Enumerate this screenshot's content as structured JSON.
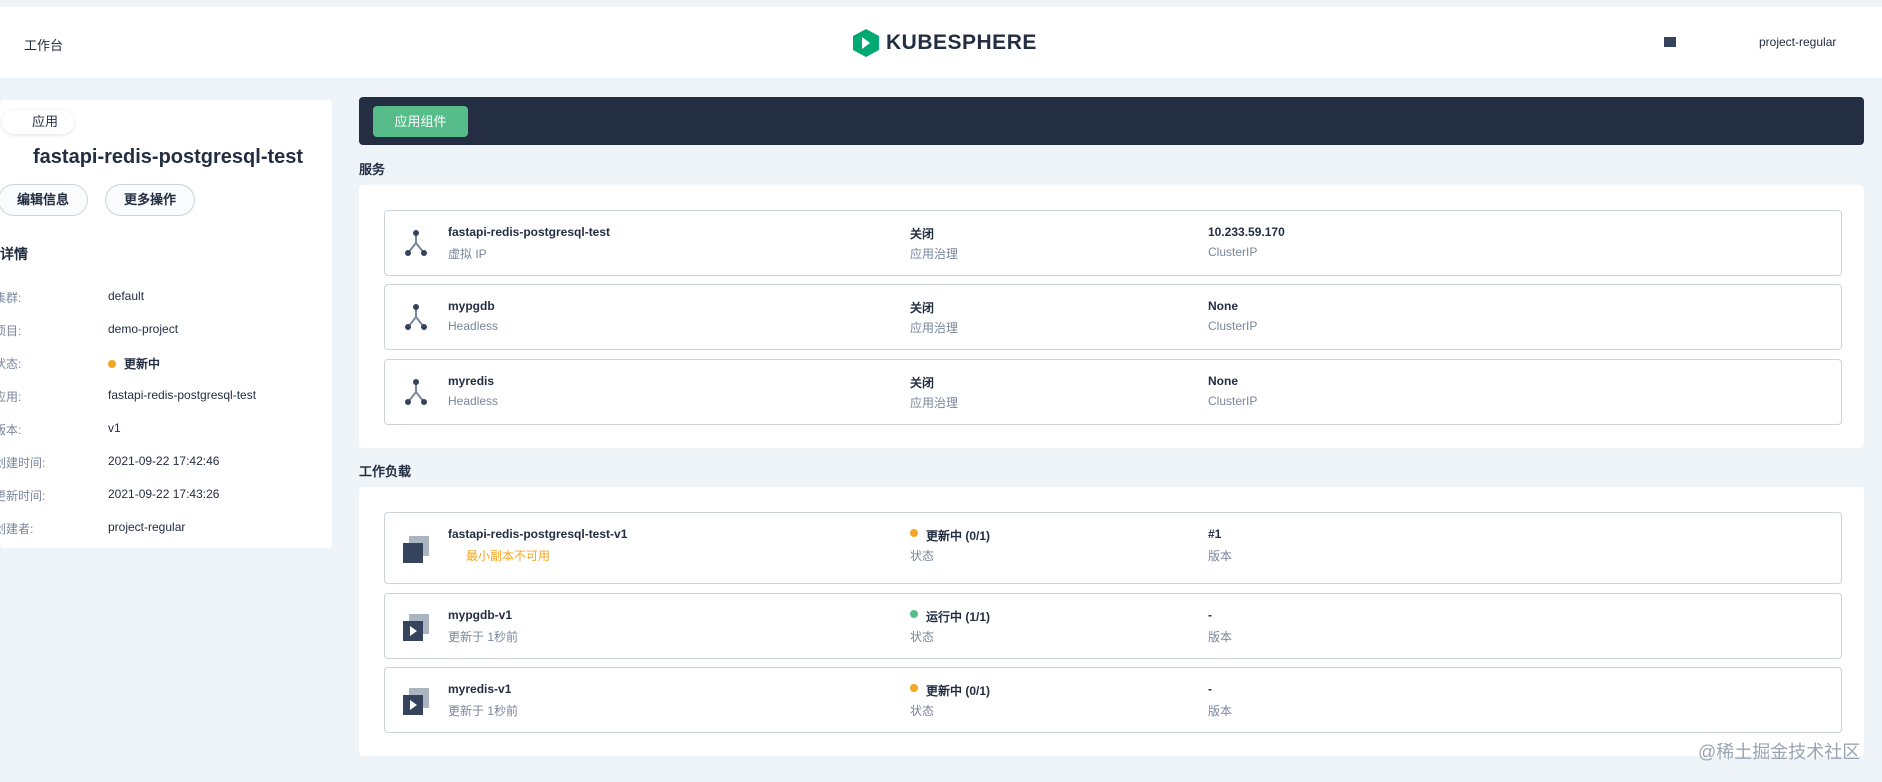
{
  "header": {
    "workbench": "工作台",
    "logo": "KUBESPHERE",
    "user": "project-regular"
  },
  "sidebar": {
    "back": "应用",
    "app_name": "fastapi-redis-postgresql-test",
    "buttons": [
      "编辑信息",
      "更多操作"
    ],
    "details_title": "详情",
    "details": [
      [
        "集群:",
        "default"
      ],
      [
        "项目:",
        "demo-project"
      ],
      [
        "状态:",
        "更新中"
      ],
      [
        "应用:",
        "fastapi-redis-postgresql-test"
      ],
      [
        "版本:",
        "v1"
      ],
      [
        "创建时间:",
        "2021-09-22 17:42:46"
      ],
      [
        "更新时间:",
        "2021-09-22 17:43:26"
      ],
      [
        "创建者:",
        "project-regular"
      ]
    ]
  },
  "tab": "应用组件",
  "services": {
    "title": "服务",
    "items": [
      {
        "name": "fastapi-redis-postgresql-test",
        "sub": "虚拟 IP",
        "governance": "关闭",
        "governance_label": "应用治理",
        "ip": "10.233.59.170",
        "ip_label": "ClusterIP"
      },
      {
        "name": "mypgdb",
        "sub": "Headless",
        "governance": "关闭",
        "governance_label": "应用治理",
        "ip": "None",
        "ip_label": "ClusterIP"
      },
      {
        "name": "myredis",
        "sub": "Headless",
        "governance": "关闭",
        "governance_label": "应用治理",
        "ip": "None",
        "ip_label": "ClusterIP"
      }
    ]
  },
  "workloads": {
    "title": "工作负载",
    "items": [
      {
        "name": "fastapi-redis-postgresql-test-v1",
        "sub": "最小副本不可用",
        "status": "更新中 (0/1)",
        "status_label": "状态",
        "version": "#1",
        "version_label": "版本"
      },
      {
        "name": "mypgdb-v1",
        "sub": "更新于 1秒前",
        "status": "运行中 (1/1)",
        "status_label": "状态",
        "version": "-",
        "version_label": "版本"
      },
      {
        "name": "myredis-v1",
        "sub": "更新于 1秒前",
        "status": "更新中 (0/1)",
        "status_label": "状态",
        "version": "-",
        "version_label": "版本"
      }
    ]
  },
  "watermark": "@稀土掘金技术社区"
}
